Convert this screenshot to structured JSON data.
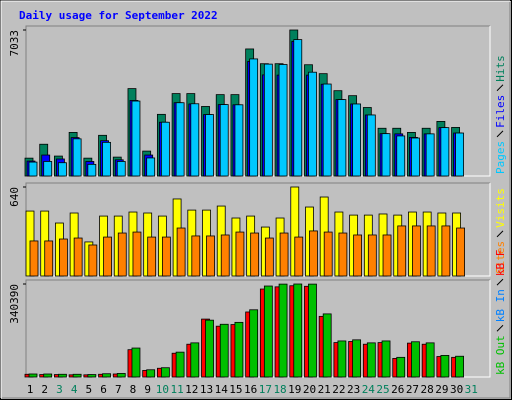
{
  "title": "Daily usage for September 2022",
  "chart_data": [
    {
      "type": "bar",
      "ylim": [
        0,
        7033
      ],
      "yticks": [
        7033
      ],
      "series": [
        {
          "name": "Hits",
          "color": "#00805c",
          "values": [
            860,
            1530,
            960,
            2100,
            860,
            1960,
            910,
            4210,
            1200,
            2970,
            3970,
            3970,
            3350,
            3920,
            3920,
            6120,
            5410,
            5410,
            7033,
            5360,
            4930,
            4110,
            3870,
            3300,
            2300,
            2300,
            2100,
            2300,
            2630,
            2340,
            null
          ]
        },
        {
          "name": "Files",
          "color": "#0000ff",
          "values": [
            720,
            1010,
            820,
            1850,
            700,
            1700,
            780,
            3640,
            1010,
            2590,
            3530,
            3470,
            2960,
            3440,
            3430,
            5520,
            4870,
            4860,
            6480,
            4860,
            4420,
            3680,
            3470,
            2940,
            2040,
            2030,
            1860,
            2030,
            2330,
            2070,
            null
          ]
        },
        {
          "name": "Pages",
          "color": "#00c8ff",
          "values": [
            670,
            700,
            640,
            1790,
            560,
            1620,
            700,
            3610,
            870,
            2590,
            3530,
            3480,
            2960,
            3440,
            3430,
            5640,
            5390,
            5370,
            6570,
            5000,
            4430,
            3680,
            3470,
            2940,
            2040,
            1930,
            1830,
            2030,
            2330,
            2070,
            null
          ]
        }
      ]
    },
    {
      "type": "bar",
      "ylim": [
        0,
        640
      ],
      "yticks": [
        640
      ],
      "series": [
        {
          "name": "Visits",
          "color": "#ffff00",
          "values": [
            467,
            467,
            381,
            453,
            245,
            431,
            431,
            460,
            453,
            431,
            554,
            474,
            474,
            503,
            417,
            431,
            352,
            417,
            640,
            496,
            568,
            460,
            438,
            438,
            446,
            438,
            460,
            460,
            453,
            453,
            null
          ]
        },
        {
          "name": "Sites",
          "color": "#ff8000",
          "values": [
            252,
            252,
            266,
            273,
            223,
            280,
            309,
            316,
            280,
            280,
            345,
            288,
            288,
            295,
            316,
            309,
            273,
            309,
            280,
            324,
            316,
            309,
            295,
            295,
            295,
            360,
            360,
            360,
            360,
            345,
            null
          ]
        }
      ]
    },
    {
      "type": "bar",
      "ylim": [
        0,
        340390
      ],
      "yticks": [
        340390
      ],
      "categories": [
        "1",
        "2",
        "3",
        "4",
        "5",
        "6",
        "7",
        "8",
        "9",
        "10",
        "11",
        "12",
        "13",
        "14",
        "15",
        "16",
        "17",
        "18",
        "19",
        "20",
        "21",
        "22",
        "23",
        "24",
        "25",
        "26",
        "27",
        "28",
        "29",
        "30",
        "31"
      ],
      "label_colors": [
        "#000000",
        "#000000",
        "#00805c",
        "#00805c",
        "#000000",
        "#000000",
        "#000000",
        "#000000",
        "#000000",
        "#00805c",
        "#00805c",
        "#000000",
        "#000000",
        "#000000",
        "#000000",
        "#000000",
        "#00805c",
        "#00805c",
        "#000000",
        "#000000",
        "#000000",
        "#000000",
        "#000000",
        "#00805c",
        "#00805c",
        "#000000",
        "#000000",
        "#000000",
        "#000000",
        "#000000",
        "#00805c"
      ],
      "series": [
        {
          "name": "kB F",
          "color": "#ff0000",
          "values": [
            10000,
            9000,
            9000,
            8000,
            8000,
            10000,
            11000,
            100000,
            24000,
            32000,
            87000,
            120000,
            212000,
            186000,
            192000,
            238000,
            322000,
            330000,
            334000,
            332000,
            222000,
            126000,
            130000,
            120000,
            126000,
            68000,
            124000,
            120000,
            75000,
            72000,
            null
          ]
        },
        {
          "name": "kB In",
          "color": "#0080ff",
          "values": [
            0,
            0,
            0,
            0,
            0,
            0,
            0,
            0,
            0,
            0,
            0,
            0,
            0,
            0,
            0,
            0,
            0,
            0,
            0,
            0,
            0,
            0,
            0,
            0,
            0,
            0,
            0,
            0,
            0,
            0,
            null
          ]
        },
        {
          "name": "kB Out",
          "color": "#00c000",
          "values": [
            11000,
            11000,
            10000,
            10000,
            9000,
            12000,
            13000,
            106000,
            26500,
            34000,
            91000,
            125000,
            208000,
            193000,
            200000,
            246000,
            333000,
            340000,
            340390,
            340000,
            231000,
            132000,
            136000,
            125000,
            132000,
            72000,
            129000,
            125000,
            79000,
            76000,
            null
          ]
        }
      ]
    }
  ]
}
